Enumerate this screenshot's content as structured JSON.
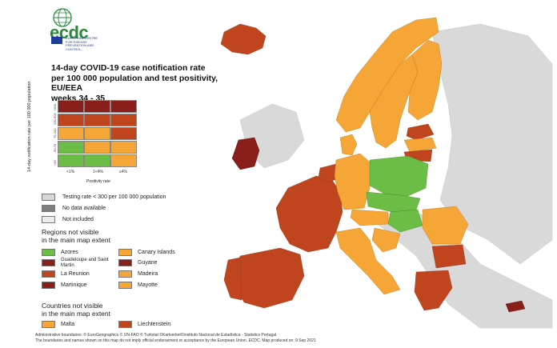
{
  "logo": {
    "text": "ecdc",
    "subtitle": "EUROPEAN CENTRE FOR DISEASE PREVENTION AND CONTROL"
  },
  "title": {
    "line1": "14-day COVID-19 case notification rate",
    "line2": "per 100 000 population and test positivity, EU/EEA",
    "line3": "weeks 34 - 35"
  },
  "colors": {
    "green": "#6cbd45",
    "orange": "#f5a636",
    "red": "#c0451f",
    "darkred": "#8a1e1a",
    "grey_light": "#d7d7d7",
    "grey_mid": "#7e7e7e",
    "grey_pale": "#ececec",
    "sea": "#ffffff"
  },
  "matrix": {
    "ylabel": "14-day notification rate per 100 000 population",
    "xlabel": "Positivity rate",
    "xticks": [
      "<1%",
      "1<4%",
      "≥4%"
    ],
    "yticks": [
      ">500",
      "200-500",
      "75-200",
      "50-75",
      "<50"
    ],
    "cells": [
      [
        "darkred",
        "darkred",
        "darkred"
      ],
      [
        "red",
        "red",
        "red"
      ],
      [
        "orange",
        "orange",
        "red"
      ],
      [
        "green",
        "orange",
        "orange"
      ],
      [
        "green",
        "green",
        "orange"
      ]
    ]
  },
  "legend": {
    "testing": "Testing rate < 300 per 100 000 population",
    "no_data": "No data available",
    "not_included": "Not included"
  },
  "regions": {
    "title1": "Regions not visible",
    "title2": "in the main map extent",
    "items": [
      {
        "label": "Azores",
        "color": "green"
      },
      {
        "label": "Canary Islands",
        "color": "orange"
      },
      {
        "label": "Guadeloupe and Saint Martin",
        "color": "darkred"
      },
      {
        "label": "Guyane",
        "color": "darkred"
      },
      {
        "label": "La Reunion",
        "color": "red"
      },
      {
        "label": "Madeira",
        "color": "orange"
      },
      {
        "label": "Martinique",
        "color": "darkred"
      },
      {
        "label": "Mayotte",
        "color": "orange"
      }
    ]
  },
  "countries": {
    "title1": "Countries not visible",
    "title2": "in the main map extent",
    "items": [
      {
        "label": "Malta",
        "color": "orange"
      },
      {
        "label": "Liechtenstein",
        "color": "red"
      }
    ]
  },
  "footer": {
    "line1": "Administrative boundaries: © EuroGeographics © UN-FAO © Turkstat ©Kartverket©Instituto Nacional de Estadística - Statistics Portugal.",
    "line2": "The boundaries and names shown on this map do not imply official endorsement or acceptance by the European Union. ECDC. Map produced on: 9 Sep 2021"
  },
  "map_regions": [
    {
      "name": "Iceland",
      "color": "red"
    },
    {
      "name": "Norway",
      "color": "orange"
    },
    {
      "name": "Sweden",
      "color": "orange"
    },
    {
      "name": "Finland",
      "color": "orange"
    },
    {
      "name": "Estonia",
      "color": "red"
    },
    {
      "name": "Latvia",
      "color": "orange"
    },
    {
      "name": "Lithuania",
      "color": "red"
    },
    {
      "name": "Denmark",
      "color": "orange"
    },
    {
      "name": "Ireland",
      "color": "darkred"
    },
    {
      "name": "Netherlands",
      "color": "red"
    },
    {
      "name": "Belgium",
      "color": "red"
    },
    {
      "name": "Luxembourg",
      "color": "red"
    },
    {
      "name": "Germany",
      "color": "orange"
    },
    {
      "name": "Poland",
      "color": "green"
    },
    {
      "name": "Czechia",
      "color": "green"
    },
    {
      "name": "Slovakia",
      "color": "green"
    },
    {
      "name": "Hungary",
      "color": "green"
    },
    {
      "name": "Austria",
      "color": "orange"
    },
    {
      "name": "Slovenia",
      "color": "red"
    },
    {
      "name": "Croatia",
      "color": "orange"
    },
    {
      "name": "Romania",
      "color": "orange"
    },
    {
      "name": "Bulgaria",
      "color": "red"
    },
    {
      "name": "Greece",
      "color": "red"
    },
    {
      "name": "Cyprus",
      "color": "darkred"
    },
    {
      "name": "France",
      "color": "red"
    },
    {
      "name": "Spain",
      "color": "red"
    },
    {
      "name": "Portugal",
      "color": "red"
    },
    {
      "name": "Italy",
      "color": "orange"
    }
  ]
}
